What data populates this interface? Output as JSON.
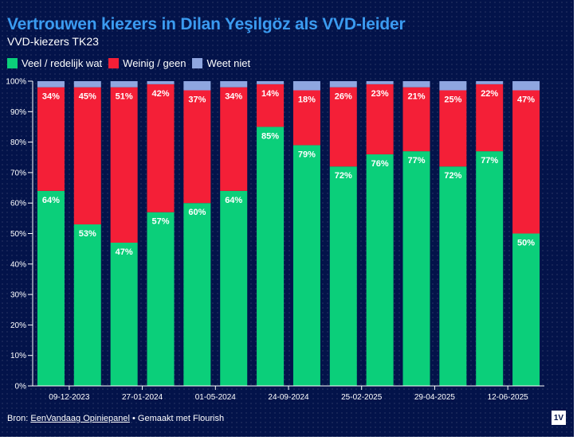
{
  "title": "Vertrouwen kiezers in Dilan Yeşilgöz als VVD-leider",
  "subtitle": "VVD-kiezers TK23",
  "footer": {
    "source_label": "Bron:",
    "source_link": "EenVandaag Opiniepanel",
    "made_with": "• Gemaakt met Flourish"
  },
  "logo_text": "1V",
  "colors": {
    "background": "#03134a",
    "title": "#3b9bf0",
    "veel": "#0bcf7a",
    "weinig": "#f41f37",
    "weet_niet": "#8fa6e0"
  },
  "chart_data": {
    "type": "bar",
    "stacked": true,
    "orientation": "vertical",
    "title": "Vertrouwen kiezers in Dilan Yeşilgöz als VVD-leider",
    "subtitle": "VVD-kiezers TK23",
    "xlabel": "",
    "ylabel": "",
    "ylim": [
      0,
      100
    ],
    "yticks": [
      "0%",
      "10%",
      "20%",
      "30%",
      "40%",
      "50%",
      "60%",
      "70%",
      "80%",
      "90%",
      "100%"
    ],
    "grid": false,
    "legend_position": "top-left",
    "x_tick_labels": [
      "09-12-2023",
      "27-01-2024",
      "01-05-2024",
      "24-09-2024",
      "25-02-2025",
      "29-04-2025",
      "12-06-2025"
    ],
    "x_tick_positions": [
      0.5,
      2.5,
      4.5,
      6.5,
      8.5,
      10.5,
      12.5
    ],
    "bar_count": 14,
    "series": [
      {
        "name": "Veel / redelijk wat",
        "color": "#0bcf7a",
        "values": [
          64,
          53,
          47,
          57,
          60,
          64,
          85,
          79,
          72,
          76,
          77,
          72,
          77,
          50
        ],
        "labels": [
          "64%",
          "53%",
          "47%",
          "57%",
          "60%",
          "64%",
          "85%",
          "79%",
          "72%",
          "76%",
          "77%",
          "72%",
          "77%",
          "50%"
        ]
      },
      {
        "name": "Weinig / geen",
        "color": "#f41f37",
        "values": [
          34,
          45,
          51,
          42,
          37,
          34,
          14,
          18,
          26,
          23,
          21,
          25,
          22,
          47
        ],
        "labels": [
          "34%",
          "45%",
          "51%",
          "42%",
          "37%",
          "34%",
          "14%",
          "18%",
          "26%",
          "23%",
          "21%",
          "25%",
          "22%",
          "47%"
        ]
      },
      {
        "name": "Weet niet",
        "color": "#8fa6e0",
        "values": [
          2,
          2,
          2,
          1,
          3,
          2,
          1,
          3,
          2,
          1,
          2,
          3,
          1,
          3
        ]
      }
    ]
  }
}
